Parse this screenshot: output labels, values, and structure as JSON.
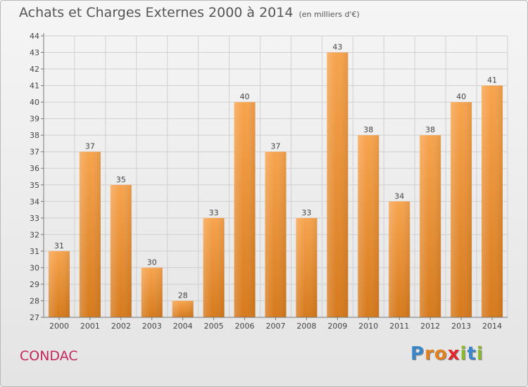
{
  "title": "Achats et Charges Externes 2000 à 2014",
  "subtitle": "(en milliers d'€)",
  "commune": "CONDAC",
  "logo": "Proxiti",
  "colors": {
    "bar_top": "#f7a44e",
    "bar_bottom": "#d67a1d",
    "commune": "#c4275b",
    "text": "#555555"
  },
  "chart_data": {
    "type": "bar",
    "categories": [
      "2000",
      "2001",
      "2002",
      "2003",
      "2004",
      "2005",
      "2006",
      "2007",
      "2008",
      "2009",
      "2010",
      "2011",
      "2012",
      "2013",
      "2014"
    ],
    "values": [
      31,
      37,
      35,
      30,
      28,
      33,
      40,
      37,
      33,
      43,
      38,
      34,
      38,
      40,
      41
    ],
    "ylim": [
      27,
      44
    ],
    "yticks": [
      27,
      28,
      29,
      30,
      31,
      32,
      33,
      34,
      35,
      36,
      37,
      38,
      39,
      40,
      41,
      42,
      43,
      44
    ],
    "grid": true,
    "data_labels": true
  }
}
